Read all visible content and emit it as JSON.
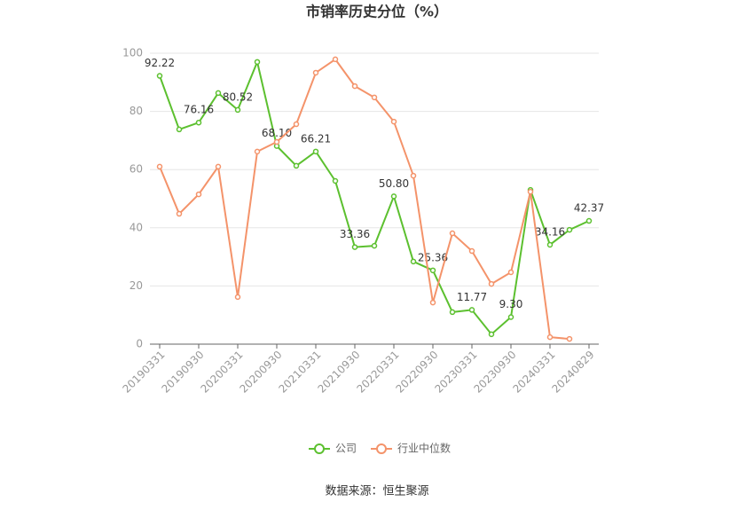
{
  "chart_data": {
    "type": "line",
    "title": "市销率历史分位（%）",
    "categories": [
      "20190331",
      null,
      "20190930",
      null,
      "20200331",
      null,
      "20200930",
      null,
      "20210331",
      null,
      "20210930",
      null,
      "20220331",
      null,
      "20220930",
      null,
      "20230331",
      null,
      "20230930",
      null,
      "20240331",
      null,
      "20240829"
    ],
    "series": [
      {
        "name": "公司",
        "color": "#5cc02f",
        "values": [
          92.22,
          73.8,
          76.16,
          86.3,
          80.52,
          97.0,
          68.1,
          61.3,
          66.21,
          56.1,
          33.36,
          33.8,
          50.8,
          28.4,
          25.36,
          11.0,
          11.77,
          3.4,
          9.3,
          53.0,
          34.16,
          39.3,
          42.37
        ],
        "value_labels": [
          "92.22",
          null,
          "76.16",
          null,
          "80.52",
          null,
          "68.10",
          null,
          "66.21",
          null,
          "33.36",
          null,
          "50.80",
          null,
          "25.36",
          null,
          "11.77",
          null,
          "9.30",
          null,
          "34.16",
          null,
          "42.37"
        ]
      },
      {
        "name": "行业中位数",
        "color": "#f4936a",
        "values": [
          61.0,
          44.8,
          51.5,
          61.0,
          16.2,
          66.2,
          69.5,
          75.6,
          93.3,
          97.9,
          88.7,
          84.8,
          76.5,
          57.9,
          14.3,
          38.1,
          32.0,
          20.7,
          24.7,
          52.4,
          2.4,
          1.8,
          null
        ]
      }
    ],
    "ylim": [
      0,
      100
    ],
    "yticks": [
      0,
      20,
      40,
      60,
      80,
      100
    ],
    "grid": true,
    "source": "数据来源：恒生聚源"
  }
}
